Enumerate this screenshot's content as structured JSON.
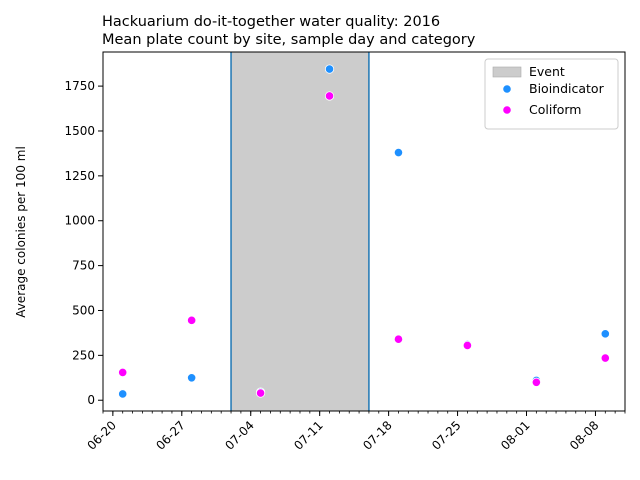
{
  "chart_data": {
    "type": "scatter",
    "title": "Hackuarium do-it-together water quality: 2016",
    "subtitle": "Mean plate count by site, sample day and category",
    "xlabel": "",
    "ylabel": "Average colonies per 100 ml",
    "x_axis_kind": "date",
    "x_range": [
      "2016-06-19",
      "2016-08-11"
    ],
    "ylim": [
      -60,
      1940
    ],
    "x_ticks": [
      {
        "date": "2016-06-20",
        "label": "06-20"
      },
      {
        "date": "2016-06-27",
        "label": "06-27"
      },
      {
        "date": "2016-07-04",
        "label": "07-04"
      },
      {
        "date": "2016-07-11",
        "label": "07-11"
      },
      {
        "date": "2016-07-18",
        "label": "07-18"
      },
      {
        "date": "2016-07-25",
        "label": "07-25"
      },
      {
        "date": "2016-08-01",
        "label": "08-01"
      },
      {
        "date": "2016-08-08",
        "label": "08-08"
      }
    ],
    "y_ticks": [
      0,
      250,
      500,
      750,
      1000,
      1250,
      1500,
      1750
    ],
    "event": {
      "name": "Event",
      "start": "2016-07-02",
      "end": "2016-07-16",
      "color": "#cccccc",
      "edge_color": "#1f77b4"
    },
    "series": [
      {
        "name": "Bioindicator",
        "color": "#1e90ff",
        "points": [
          {
            "x": "2016-06-21",
            "y": 35
          },
          {
            "x": "2016-06-28",
            "y": 125
          },
          {
            "x": "2016-07-05",
            "y": 45
          },
          {
            "x": "2016-07-12",
            "y": 1845
          },
          {
            "x": "2016-07-19",
            "y": 1380
          },
          {
            "x": "2016-07-26",
            "y": 310
          },
          {
            "x": "2016-08-02",
            "y": 110
          },
          {
            "x": "2016-08-09",
            "y": 370
          }
        ]
      },
      {
        "name": "Coliform",
        "color": "#ff00ff",
        "points": [
          {
            "x": "2016-06-21",
            "y": 155
          },
          {
            "x": "2016-06-28",
            "y": 445
          },
          {
            "x": "2016-07-05",
            "y": 40
          },
          {
            "x": "2016-07-12",
            "y": 1695
          },
          {
            "x": "2016-07-19",
            "y": 340
          },
          {
            "x": "2016-07-26",
            "y": 305
          },
          {
            "x": "2016-08-02",
            "y": 100
          },
          {
            "x": "2016-08-09",
            "y": 235
          }
        ]
      }
    ],
    "legend_position": "top-right",
    "grid": false
  }
}
